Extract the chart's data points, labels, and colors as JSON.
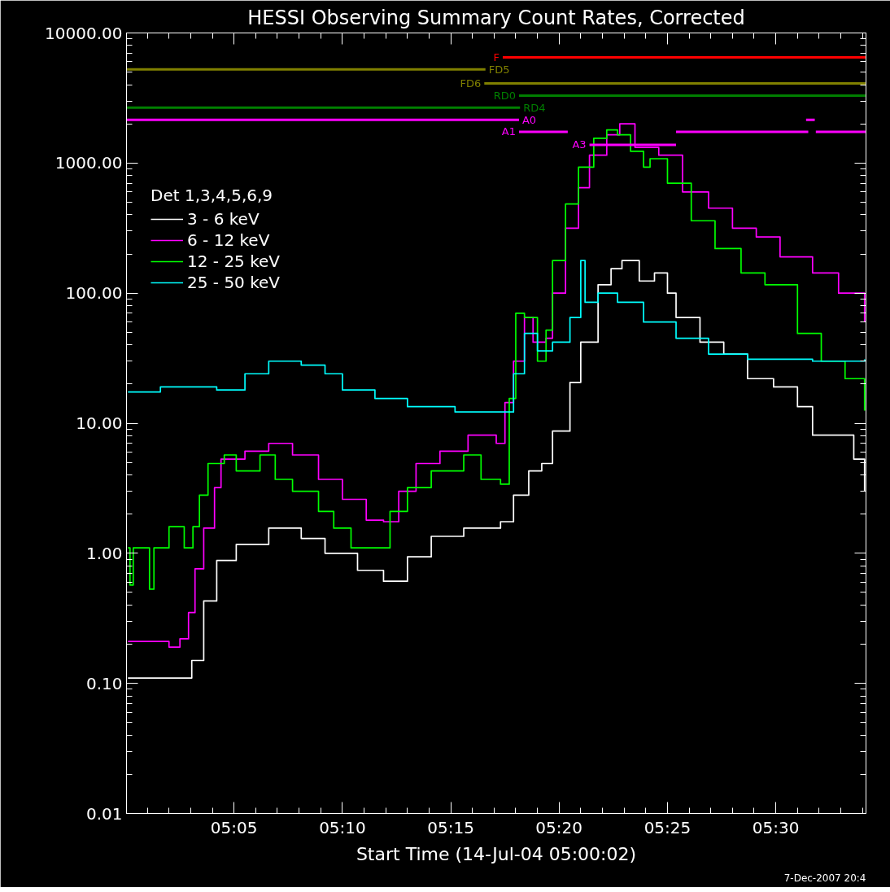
{
  "chart_data": {
    "type": "step",
    "title": "HESSI Observing Summary Count Rates, Corrected",
    "xlabel": "Start Time (14-Jul-04 05:00:02)",
    "legend_title": "Det 1,3,4,5,6,9",
    "annotations": [
      "7-Dec-2007 20:4"
    ],
    "log": true,
    "grid": false,
    "legend": "top left",
    "marker": "none",
    "line_style": "solid",
    "xlim": [
      5.0006,
      5.5694
    ],
    "ylim": [
      0.01,
      10000
    ],
    "xticks": [
      {
        "value": 5.0833,
        "label": "05:05"
      },
      {
        "value": 5.1667,
        "label": "05:10"
      },
      {
        "value": 5.25,
        "label": "05:15"
      },
      {
        "value": 5.3333,
        "label": "05:20"
      },
      {
        "value": 5.4167,
        "label": "05:25"
      },
      {
        "value": 5.5,
        "label": "05:30"
      }
    ],
    "yticks": [
      {
        "value": 0.01,
        "label": "0.01"
      },
      {
        "value": 0.1,
        "label": "0.10"
      },
      {
        "value": 1,
        "label": "1.00"
      },
      {
        "value": 10,
        "label": "10.00"
      },
      {
        "value": 100,
        "label": "100.00"
      },
      {
        "value": 1000,
        "label": "1000.00"
      },
      {
        "value": 10000,
        "label": "10000.00"
      }
    ],
    "series": [
      {
        "name": "3 - 6 keV",
        "color": "#ffffff",
        "x": [
          5.0017,
          5.0383,
          5.0508,
          5.06,
          5.07,
          5.085,
          5.11,
          5.135,
          5.1533,
          5.1783,
          5.1983,
          5.2167,
          5.235,
          5.26,
          5.2883,
          5.2983,
          5.31,
          5.32,
          5.3283,
          5.3417,
          5.35,
          5.3633,
          5.3733,
          5.3817,
          5.395,
          5.4067,
          5.4167,
          5.4233,
          5.4417,
          5.46,
          5.4783,
          5.4983,
          5.5167,
          5.5283,
          5.5483,
          5.56,
          5.5683
        ],
        "values": [
          0.11,
          0.11,
          0.15,
          0.43,
          0.88,
          1.17,
          1.56,
          1.3,
          1.0,
          0.74,
          0.61,
          0.94,
          1.35,
          1.56,
          1.75,
          2.8,
          4.3,
          4.9,
          8.7,
          20.6,
          42,
          116,
          154,
          178,
          124,
          143,
          100,
          65,
          42,
          34,
          22,
          19,
          13.4,
          8.1,
          8.1,
          5.3,
          3.0
        ]
      },
      {
        "name": "6 - 12 keV",
        "color": "#ff00ff",
        "x": [
          5.0017,
          5.0333,
          5.0417,
          5.0483,
          5.0533,
          5.06,
          5.0683,
          5.0733,
          5.0917,
          5.11,
          5.1283,
          5.1483,
          5.1667,
          5.185,
          5.1983,
          5.21,
          5.2233,
          5.2417,
          5.2633,
          5.285,
          5.2917,
          5.2983,
          5.3067,
          5.3133,
          5.3233,
          5.3283,
          5.3383,
          5.3483,
          5.3567,
          5.37,
          5.38,
          5.3917,
          5.41,
          5.4283,
          5.4483,
          5.4667,
          5.485,
          5.5033,
          5.5283,
          5.5483,
          5.5683
        ],
        "values": [
          0.21,
          0.19,
          0.22,
          0.35,
          0.76,
          1.56,
          3.2,
          5.3,
          6.1,
          7.0,
          5.7,
          3.7,
          2.6,
          1.8,
          1.75,
          3.0,
          4.9,
          6.1,
          8.1,
          7.0,
          14.4,
          30,
          65,
          42,
          45,
          100,
          316,
          647,
          1150,
          1650,
          2000,
          1320,
          1150,
          600,
          450,
          316,
          270,
          190,
          143,
          100,
          60
        ]
      },
      {
        "name": "12 - 25 keV",
        "color": "#00ff00",
        "x": [
          5.0017,
          5.0033,
          5.0058,
          5.0183,
          5.0217,
          5.0333,
          5.045,
          5.0517,
          5.0567,
          5.0633,
          5.0758,
          5.085,
          5.1033,
          5.115,
          5.1283,
          5.1483,
          5.16,
          5.1733,
          5.1983,
          5.2033,
          5.2167,
          5.235,
          5.26,
          5.2733,
          5.2883,
          5.295,
          5.3,
          5.3067,
          5.3167,
          5.3233,
          5.3283,
          5.3383,
          5.3483,
          5.36,
          5.37,
          5.3783,
          5.3883,
          5.3983,
          5.4033,
          5.4167,
          5.435,
          5.4533,
          5.4733,
          5.4917,
          5.5167,
          5.535,
          5.5533,
          5.5683
        ],
        "values": [
          1.1,
          0.57,
          1.1,
          0.53,
          1.1,
          1.6,
          1.1,
          1.6,
          2.8,
          4.9,
          5.7,
          4.3,
          5.7,
          3.7,
          3.0,
          2.1,
          1.56,
          1.1,
          1.1,
          2.1,
          3.2,
          4.3,
          5.7,
          3.7,
          3.4,
          15.5,
          70,
          65,
          30,
          52,
          178,
          485,
          930,
          1550,
          1800,
          1650,
          1230,
          930,
          1080,
          700,
          360,
          220,
          143,
          116,
          49,
          30,
          22,
          12.5
        ]
      },
      {
        "name": "25 - 50 keV",
        "color": "#00ffff",
        "x": [
          5.0017,
          5.0267,
          5.07,
          5.0917,
          5.11,
          5.135,
          5.1533,
          5.1667,
          5.1917,
          5.2167,
          5.2533,
          5.2917,
          5.2983,
          5.3067,
          5.3167,
          5.3283,
          5.3417,
          5.35,
          5.3533,
          5.3633,
          5.3783,
          5.3983,
          5.4233,
          5.4483,
          5.4783,
          5.5283,
          5.5683
        ],
        "values": [
          17.4,
          19,
          18,
          24,
          30,
          28,
          24,
          18,
          15.5,
          13.4,
          12.2,
          12.2,
          24,
          49,
          36,
          42,
          65,
          178,
          85,
          100,
          85,
          60,
          45,
          34,
          31,
          30,
          31
        ]
      },
      {
        "name": "F",
        "type": "line",
        "color": "#ff0000",
        "x": [
          5.29,
          5.569
        ],
        "values": [
          6500,
          6500
        ]
      },
      {
        "name": "FD5",
        "type": "line",
        "color": "#808000",
        "x": [
          5.0006,
          5.2767
        ],
        "values": [
          5250,
          5250
        ]
      },
      {
        "name": "FD6",
        "type": "line",
        "color": "#808000",
        "x": [
          5.2758,
          5.569
        ],
        "values": [
          4100,
          4100
        ]
      },
      {
        "name": "RD0",
        "type": "line",
        "color": "#007f00",
        "x": [
          5.3025,
          5.569
        ],
        "values": [
          3300,
          3300
        ]
      },
      {
        "name": "RD4",
        "type": "line",
        "color": "#007f00",
        "x": [
          5.0006,
          5.3033
        ],
        "values": [
          2670,
          2670
        ]
      },
      {
        "name": "A0",
        "type": "line",
        "color": "#ff00ff",
        "x": [
          5.0006,
          5.3025,
          5.4,
          5.5233,
          5.53
        ],
        "values": [
          2150,
          2150,
          null,
          2150,
          2150
        ]
      },
      {
        "name": "A1",
        "type": "line",
        "color": "#ff00ff",
        "x": [
          5.3025,
          5.34,
          5.38,
          5.4233,
          5.525,
          5.528,
          5.5308,
          5.569
        ],
        "values": [
          1740,
          1740,
          null,
          1740,
          1740,
          null,
          1740,
          1740
        ]
      },
      {
        "name": "A3",
        "type": "line",
        "color": "#ff00ff",
        "x": [
          5.3567,
          5.4233
        ],
        "values": [
          1380,
          1380
        ]
      }
    ]
  }
}
